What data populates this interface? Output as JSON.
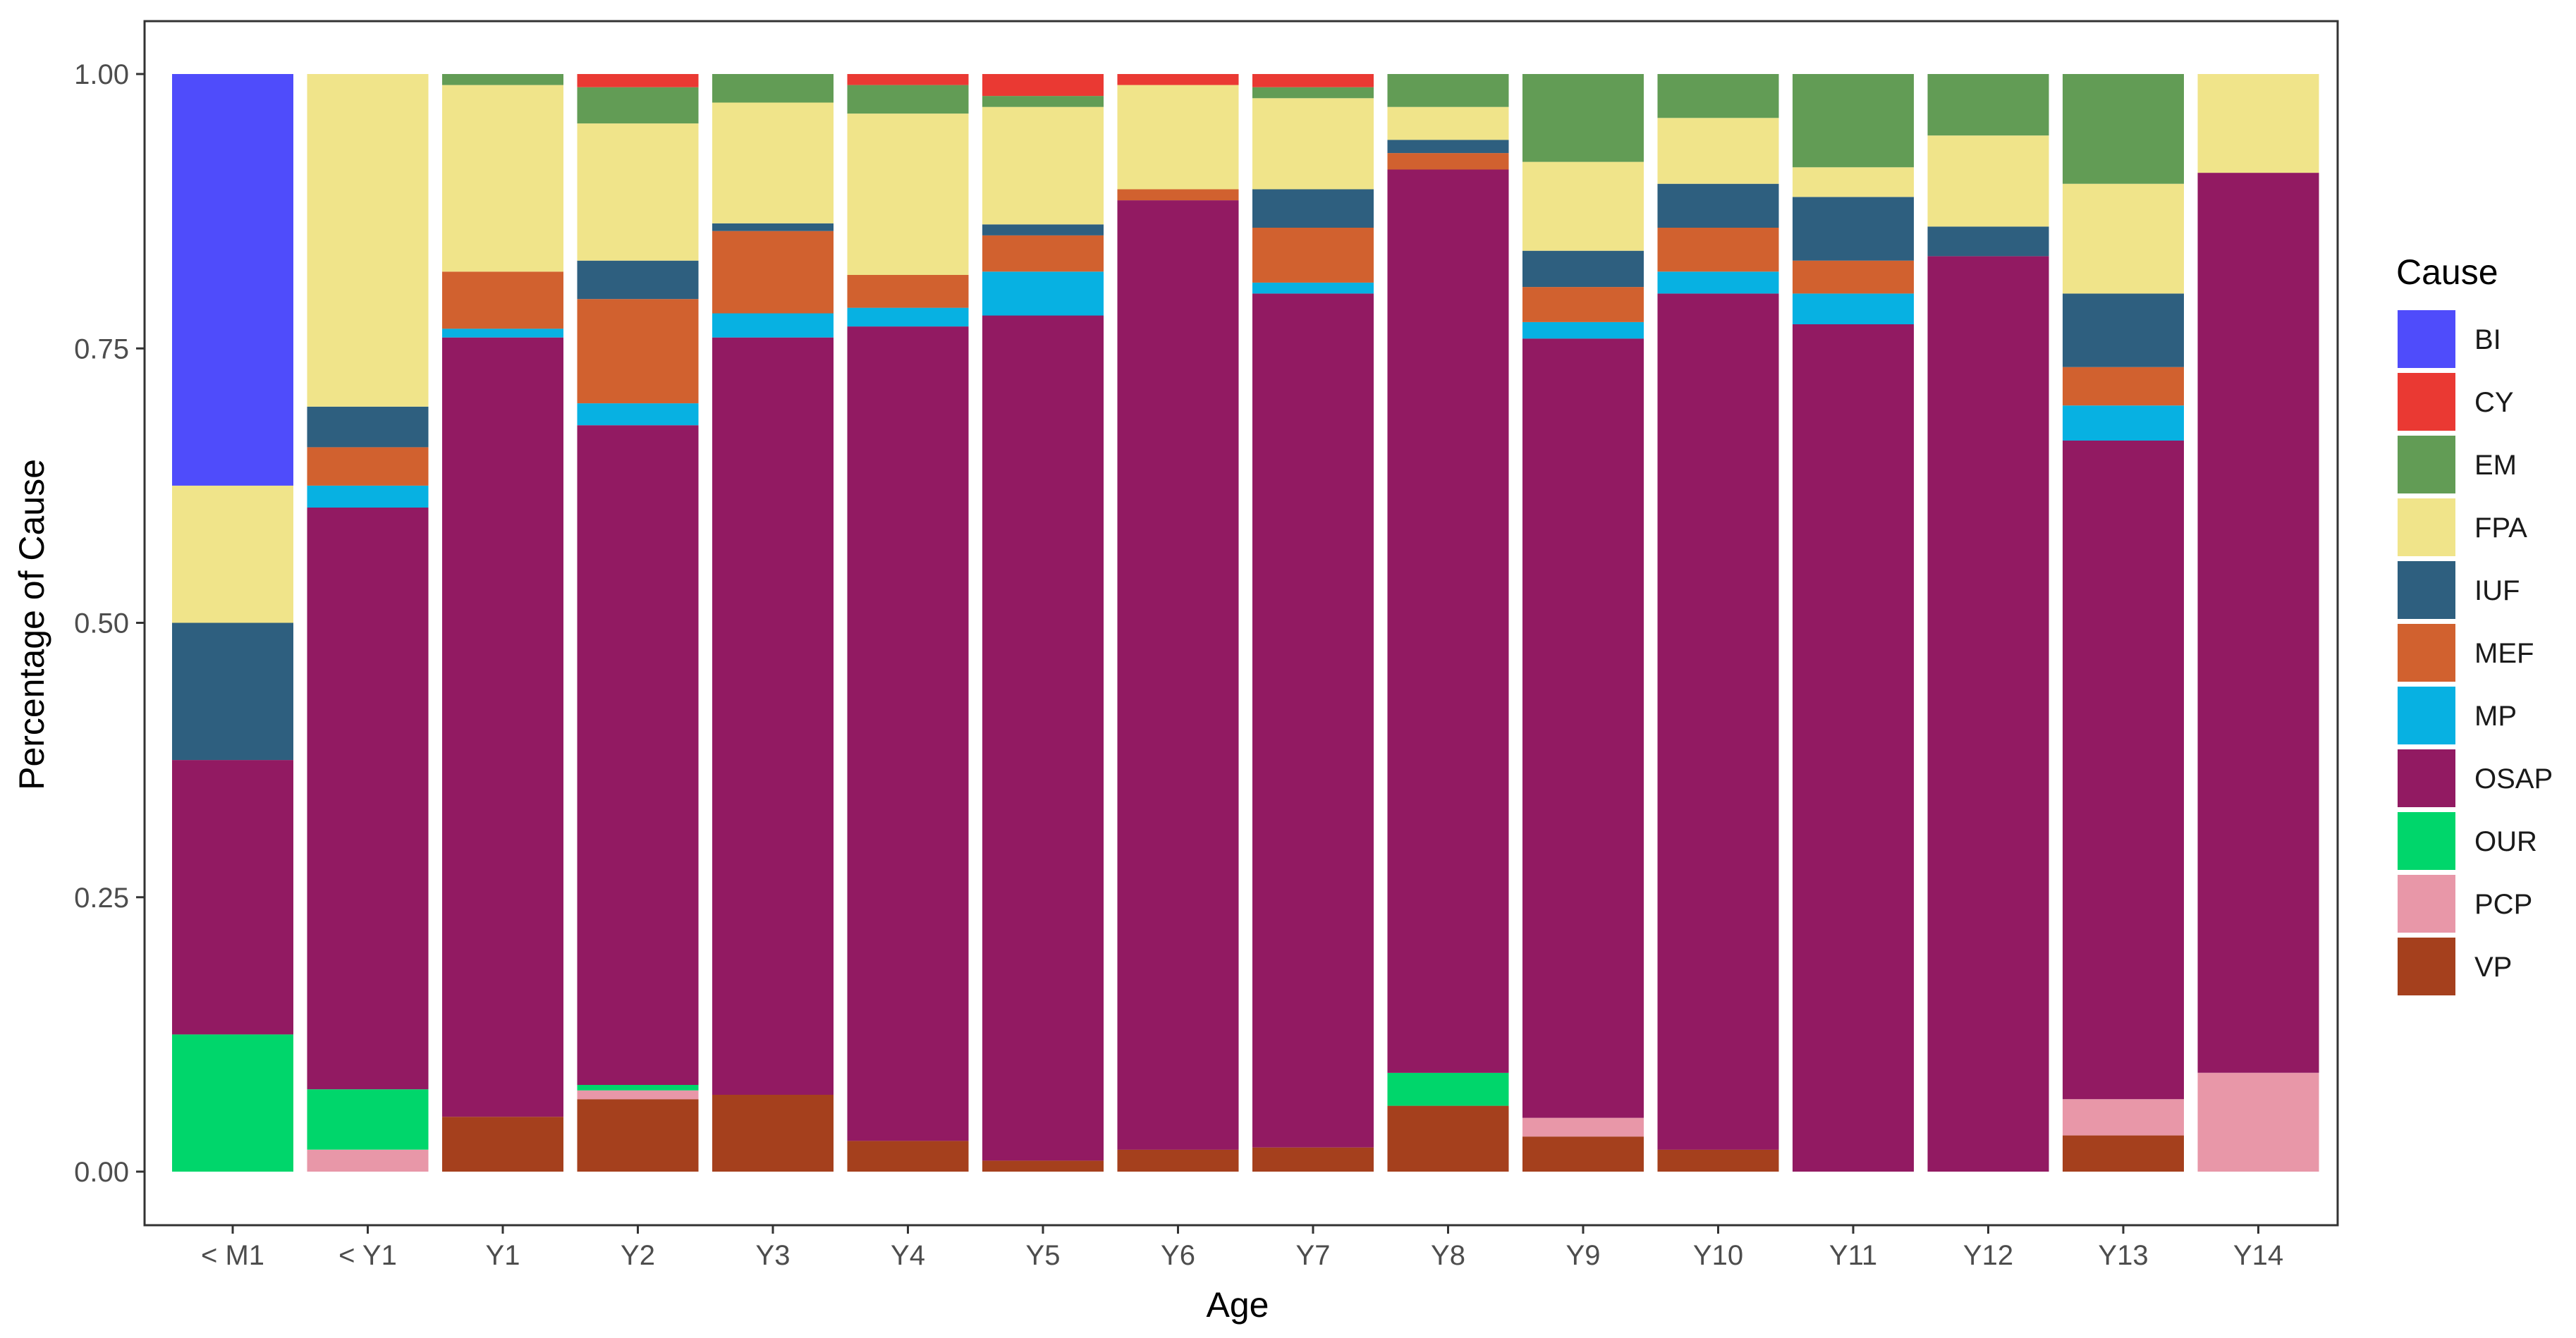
{
  "chart_data": {
    "type": "bar",
    "stacked": true,
    "title": "",
    "xlabel": "Age",
    "ylabel": "Percentage of Cause",
    "ylim": [
      0,
      1
    ],
    "yticks": [
      "0.00",
      "0.25",
      "0.50",
      "0.75",
      "1.00"
    ],
    "ytick_values": [
      0,
      0.25,
      0.5,
      0.75,
      1.0
    ],
    "grid": false,
    "categories": [
      "< M1",
      "< Y1",
      "Y1",
      "Y2",
      "Y3",
      "Y4",
      "Y5",
      "Y6",
      "Y7",
      "Y8",
      "Y9",
      "Y10",
      "Y11",
      "Y12",
      "Y13",
      "Y14"
    ],
    "legend": {
      "title": "Cause",
      "position": "right"
    },
    "series": [
      {
        "name": "VP",
        "color": "#a5401d",
        "values": [
          0,
          0,
          0.05,
          0.066,
          0.07,
          0.028,
          0.01,
          0.02,
          0.022,
          0.06,
          0.032,
          0.02,
          0,
          0,
          0.033,
          0
        ]
      },
      {
        "name": "PCP",
        "color": "#e897a8",
        "values": [
          0,
          0.02,
          0,
          0.008,
          0,
          0,
          0,
          0,
          0,
          0,
          0.017,
          0,
          0,
          0,
          0.033,
          0.09
        ]
      },
      {
        "name": "OUR",
        "color": "#00d66b",
        "values": [
          0.125,
          0.055,
          0,
          0.005,
          0,
          0,
          0,
          0,
          0,
          0.03,
          0,
          0,
          0,
          0,
          0,
          0
        ]
      },
      {
        "name": "OSAP",
        "color": "#921a62",
        "values": [
          0.25,
          0.53,
          0.71,
          0.601,
          0.69,
          0.742,
          0.77,
          0.865,
          0.778,
          0.823,
          0.71,
          0.78,
          0.772,
          0.834,
          0.6,
          0.82
        ]
      },
      {
        "name": "MP",
        "color": "#07b1e2",
        "values": [
          0,
          0.02,
          0.008,
          0.02,
          0.022,
          0.017,
          0.04,
          0,
          0.01,
          0,
          0.015,
          0.02,
          0.028,
          0,
          0.032,
          0
        ]
      },
      {
        "name": "MEF",
        "color": "#d1612f",
        "values": [
          0,
          0.035,
          0.052,
          0.095,
          0.075,
          0.03,
          0.033,
          0.01,
          0.05,
          0.015,
          0.032,
          0.04,
          0.03,
          0,
          0.035,
          0
        ]
      },
      {
        "name": "IUF",
        "color": "#2e5f7f",
        "values": [
          0.125,
          0.037,
          0,
          0.035,
          0.007,
          0,
          0.01,
          0,
          0.035,
          0.012,
          0.033,
          0.04,
          0.058,
          0.027,
          0.067,
          0
        ]
      },
      {
        "name": "FPA",
        "color": "#f0e48a",
        "values": [
          0.125,
          0.303,
          0.17,
          0.125,
          0.11,
          0.147,
          0.107,
          0.095,
          0.083,
          0.03,
          0.081,
          0.06,
          0.027,
          0.083,
          0.1,
          0.09
        ]
      },
      {
        "name": "EM",
        "color": "#629c55",
        "values": [
          0,
          0,
          0.01,
          0.033,
          0.026,
          0.026,
          0.01,
          0,
          0.01,
          0.03,
          0.08,
          0.04,
          0.085,
          0.056,
          0.1,
          0
        ]
      },
      {
        "name": "CY",
        "color": "#ea3933",
        "values": [
          0,
          0,
          0,
          0.012,
          0,
          0.01,
          0.02,
          0.01,
          0.012,
          0,
          0,
          0,
          0,
          0,
          0,
          0
        ]
      },
      {
        "name": "BI",
        "color": "#4f4cfb",
        "values": [
          0.375,
          0,
          0,
          0,
          0,
          0,
          0,
          0,
          0,
          0,
          0,
          0,
          0,
          0,
          0,
          0
        ]
      }
    ],
    "legend_order": [
      "BI",
      "CY",
      "EM",
      "FPA",
      "IUF",
      "MEF",
      "MP",
      "OSAP",
      "OUR",
      "PCP",
      "VP"
    ],
    "colors": {
      "panel_border": "#333333",
      "tick_label": "#4d4d4d",
      "axis_title": "#000000"
    }
  }
}
